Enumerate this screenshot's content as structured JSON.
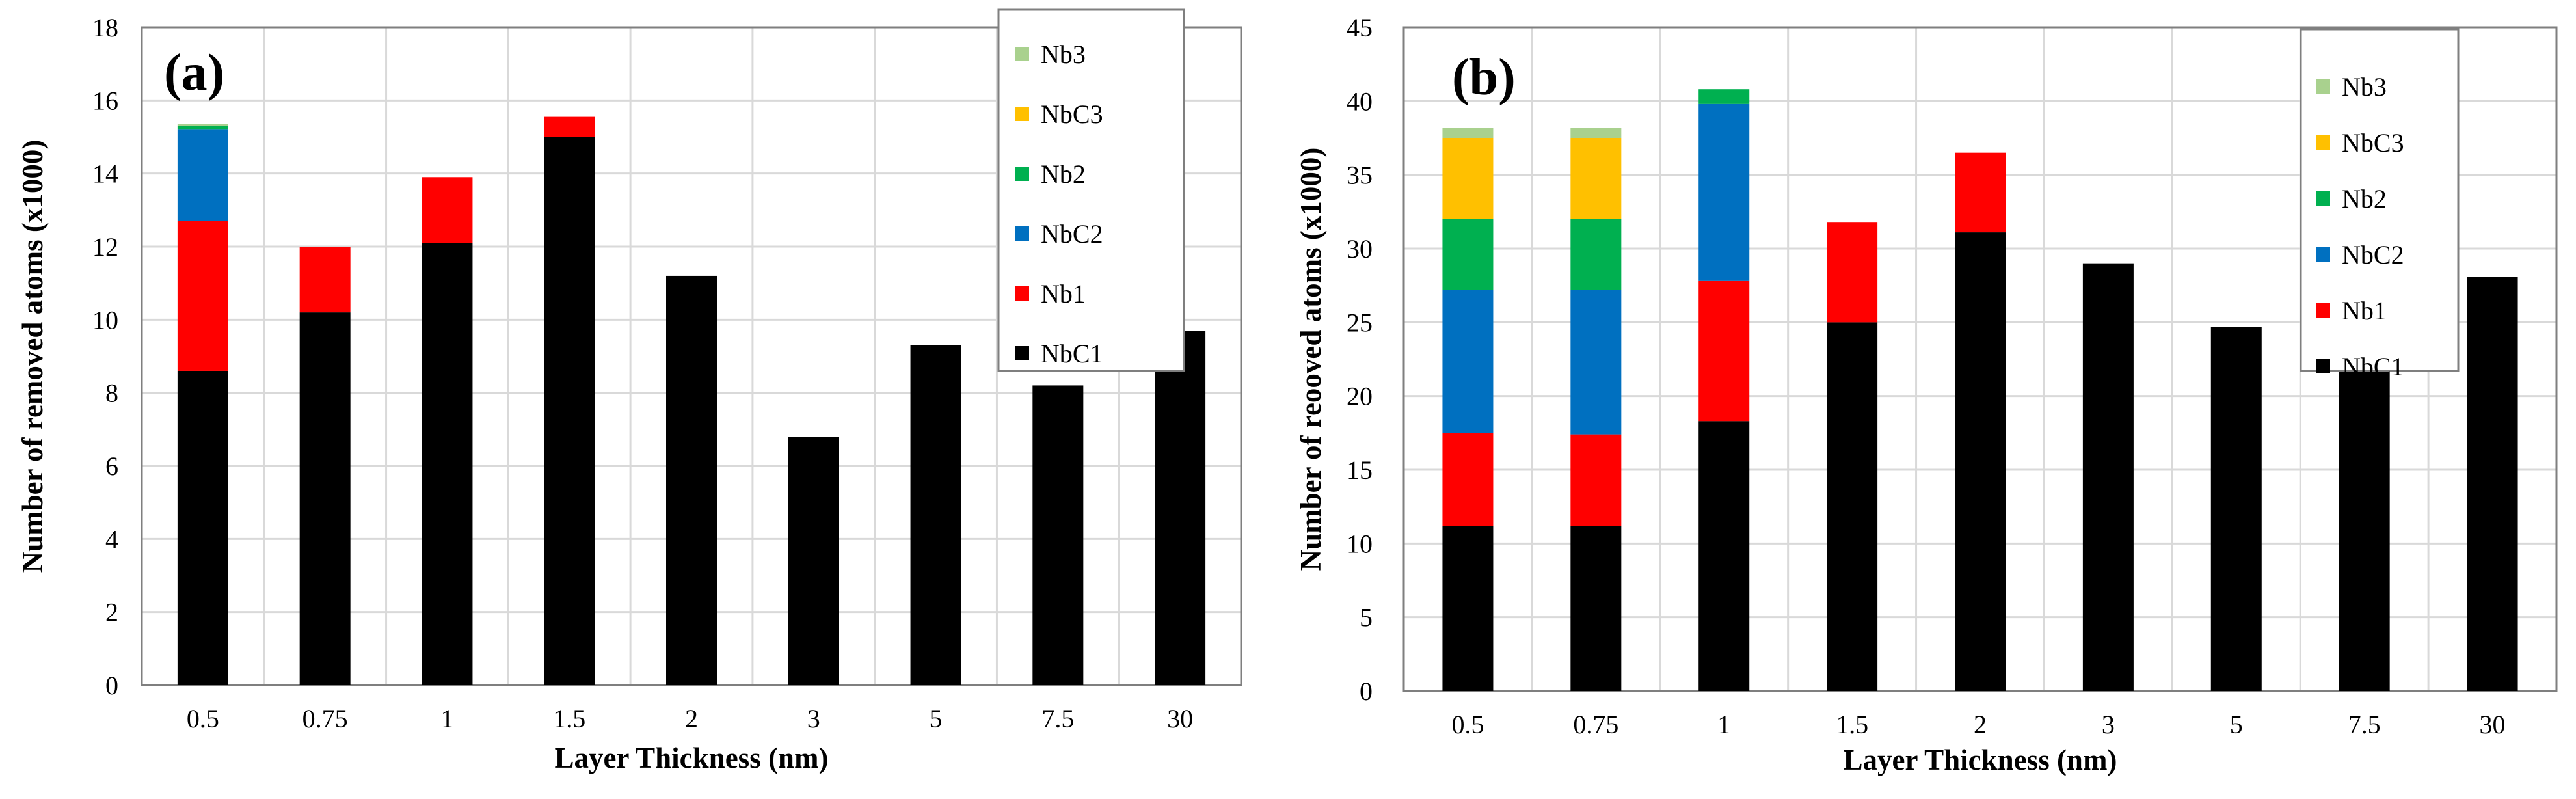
{
  "chart_data": [
    {
      "type": "bar",
      "stacked": true,
      "panel_label": "(a)",
      "xlabel": "Layer Thickness (nm)",
      "ylabel": "Number of removed atoms (x1000)",
      "ylim": [
        0,
        18
      ],
      "ytick_step": 2,
      "yticks": [
        "0",
        "2",
        "4",
        "6",
        "8",
        "10",
        "12",
        "14",
        "16",
        "18"
      ],
      "grid": true,
      "legend_position": "top-right",
      "categories": [
        "0.5",
        "0.75",
        "1",
        "1.5",
        "2",
        "3",
        "5",
        "7.5",
        "30"
      ],
      "series": [
        {
          "name": "NbC1",
          "color": "#000000",
          "values": [
            8.6,
            10.2,
            12.1,
            15.0,
            11.2,
            6.8,
            9.3,
            8.2,
            9.7
          ]
        },
        {
          "name": "Nb1",
          "color": "#ff0000",
          "values": [
            4.1,
            1.8,
            1.8,
            0.55,
            0,
            0,
            0,
            0,
            0
          ]
        },
        {
          "name": "NbC2",
          "color": "#0070c0",
          "values": [
            2.5,
            0,
            0,
            0,
            0,
            0,
            0,
            0,
            0
          ]
        },
        {
          "name": "Nb2",
          "color": "#00b050",
          "values": [
            0.1,
            0,
            0,
            0,
            0,
            0,
            0,
            0,
            0
          ]
        },
        {
          "name": "NbC3",
          "color": "#ffc000",
          "values": [
            0,
            0,
            0,
            0,
            0,
            0,
            0,
            0,
            0
          ]
        },
        {
          "name": "Nb3",
          "color": "#a9d18e",
          "values": [
            0.05,
            0,
            0,
            0,
            0,
            0,
            0,
            0,
            0
          ]
        }
      ]
    },
    {
      "type": "bar",
      "stacked": true,
      "panel_label": "(b)",
      "xlabel": "Layer Thickness (nm)",
      "ylabel": "Number of reooved atoms (x1000)",
      "ylim": [
        0,
        45
      ],
      "ytick_step": 5,
      "yticks": [
        "0",
        "5",
        "10",
        "15",
        "20",
        "25",
        "30",
        "35",
        "40",
        "45"
      ],
      "grid": true,
      "legend_position": "top-right",
      "categories": [
        "0.5",
        "0.75",
        "1",
        "1.5",
        "2",
        "3",
        "5",
        "7.5",
        "30"
      ],
      "series": [
        {
          "name": "NbC1",
          "color": "#000000",
          "values": [
            11.2,
            11.2,
            18.3,
            25.0,
            31.1,
            29.0,
            24.7,
            22.3,
            28.1
          ]
        },
        {
          "name": "Nb1",
          "color": "#ff0000",
          "values": [
            6.3,
            6.2,
            9.5,
            6.8,
            5.4,
            0,
            0,
            0,
            0
          ]
        },
        {
          "name": "NbC2",
          "color": "#0070c0",
          "values": [
            9.7,
            9.8,
            12.0,
            0,
            0,
            0,
            0,
            0,
            0
          ]
        },
        {
          "name": "Nb2",
          "color": "#00b050",
          "values": [
            4.8,
            4.8,
            1.0,
            0,
            0,
            0,
            0,
            0,
            0
          ]
        },
        {
          "name": "NbC3",
          "color": "#ffc000",
          "values": [
            5.5,
            5.5,
            0,
            0,
            0,
            0,
            0,
            0,
            0
          ]
        },
        {
          "name": "Nb3",
          "color": "#a9d18e",
          "values": [
            0.7,
            0.7,
            0,
            0,
            0,
            0,
            0,
            0,
            0
          ]
        }
      ]
    }
  ]
}
